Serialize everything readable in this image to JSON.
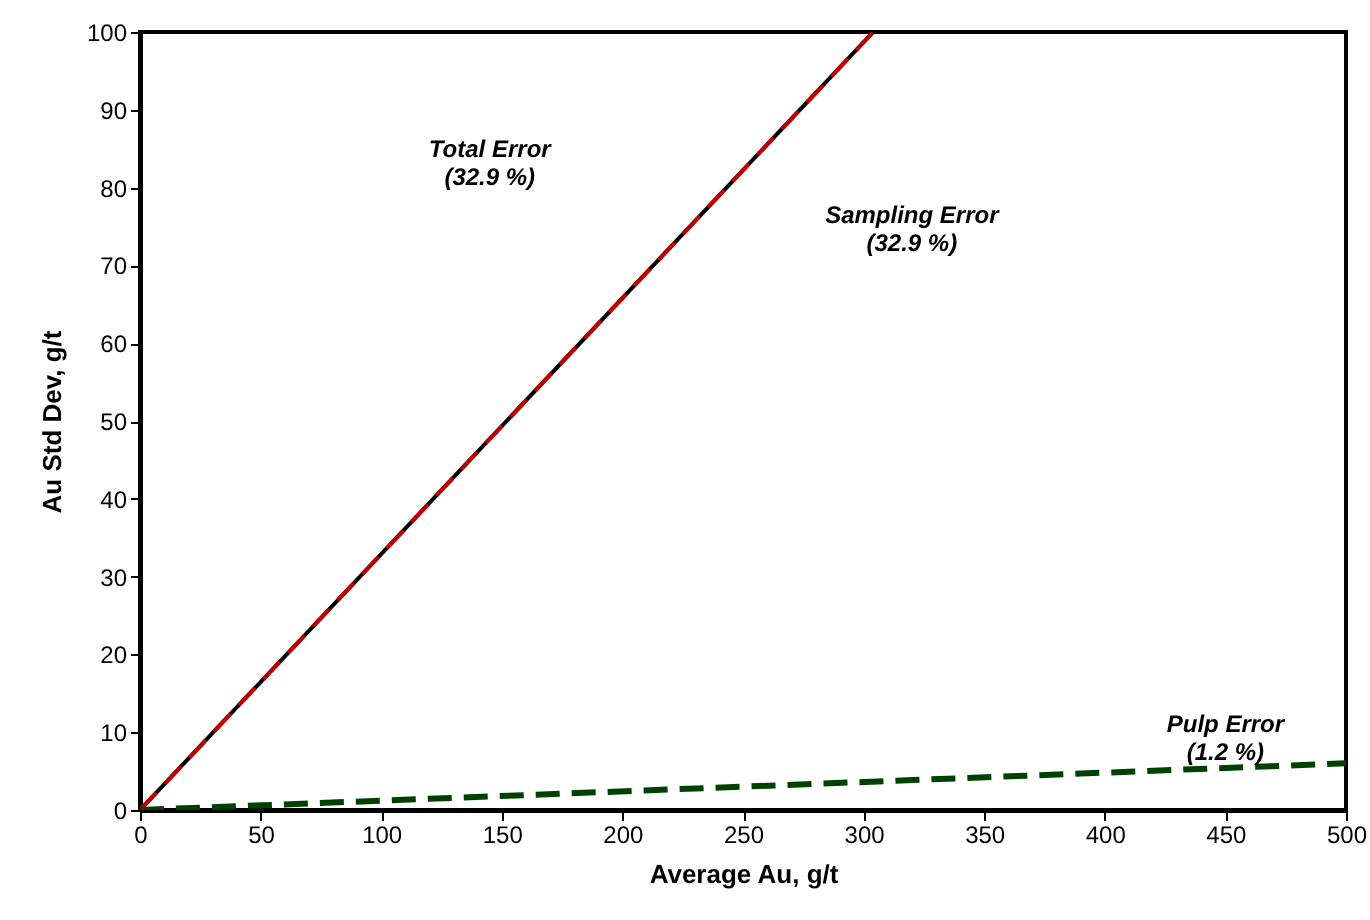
{
  "chart_data": {
    "type": "line",
    "xlabel": "Average Au, g/t",
    "ylabel": "Au Std Dev, g/t",
    "xlim": [
      0,
      500
    ],
    "xticks": [
      0,
      50,
      100,
      150,
      200,
      250,
      300,
      350,
      400,
      450,
      500
    ],
    "ylim": [
      0,
      100
    ],
    "yticks": [
      0,
      10,
      20,
      30,
      40,
      50,
      60,
      70,
      80,
      90,
      100
    ],
    "grid": false,
    "marker": "none",
    "series": [
      {
        "color": "#000000",
        "x": [
          0,
          304
        ],
        "values": [
          0,
          100
        ],
        "line_style": "solid"
      },
      {
        "color": "#c00000",
        "x": [
          0,
          304
        ],
        "values": [
          0,
          100
        ],
        "line_style": "dashed"
      },
      {
        "color": "#004000",
        "x": [
          0,
          500
        ],
        "values": [
          0,
          6
        ],
        "line_style": "dashed"
      }
    ],
    "annotations": [
      "Total Error\n(32.9 %)",
      "Sampling Error\n(32.9 %)",
      "Pulp Error\n(1.2 %)"
    ]
  }
}
